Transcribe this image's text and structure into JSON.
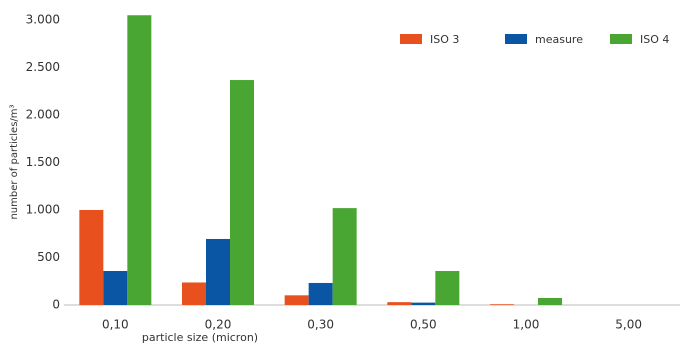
{
  "chart_data": {
    "type": "bar",
    "y_label": "number of particles/m³",
    "x_label": "particle size (micron)",
    "categories": [
      "0,10",
      "0,20",
      "0,30",
      "0,50",
      "1,00",
      "5,00"
    ],
    "series": [
      {
        "name": "ISO 3",
        "color": "#e8501e",
        "values": [
          1000,
          237,
          102,
          30,
          8,
          0
        ]
      },
      {
        "name": "measure",
        "color": "#0b56a4",
        "values": [
          358,
          695,
          232,
          25,
          0,
          0
        ]
      },
      {
        "name": "ISO 4",
        "color": "#4aa632",
        "values": [
          3050,
          2368,
          1020,
          358,
          74,
          0
        ]
      }
    ],
    "ylim": [
      0,
      3000
    ],
    "yticks": [
      0,
      500,
      {
        "value": 1000,
        "label": "1.000"
      },
      {
        "value": 1500,
        "label": "1.500"
      },
      {
        "value": 2000,
        "label": "2.000"
      },
      {
        "value": 2500,
        "label": "2.500"
      },
      {
        "value": 3000,
        "label": "3.000"
      }
    ],
    "legend": "top-right"
  }
}
